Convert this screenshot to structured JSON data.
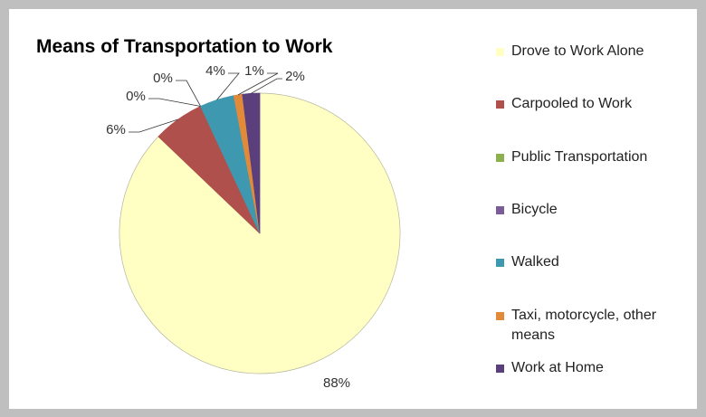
{
  "chart_data": {
    "type": "pie",
    "title": "Means of Transportation to Work",
    "categories": [
      "Drove to Work Alone",
      "Carpooled to Work",
      "Public Transportation",
      "Bicycle",
      "Walked",
      "Taxi, motorcycle, other means",
      "Work at Home"
    ],
    "values": [
      88,
      6,
      0,
      0,
      4,
      1,
      2
    ],
    "value_labels": [
      "88%",
      "6%",
      "0%",
      "0%",
      "4%",
      "1%",
      "2%"
    ],
    "colors": [
      "#FFFFC4",
      "#B0504C",
      "#8DB04E",
      "#7A5C99",
      "#3E98B0",
      "#E08A3A",
      "#5B3F7C"
    ],
    "legend": "right"
  }
}
